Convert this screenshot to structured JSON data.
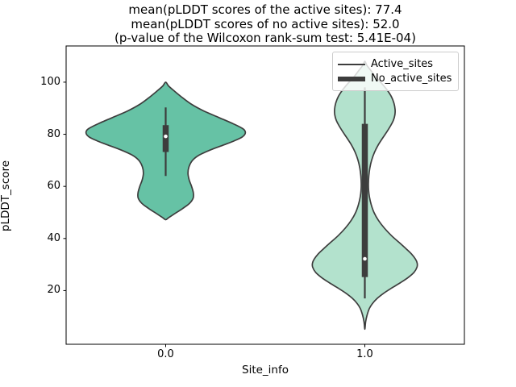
{
  "chart_data": {
    "type": "violin",
    "title_lines": [
      "mean(pLDDT scores of the active sites): 77.4",
      "mean(pLDDT scores of no active sites): 52.0",
      "(p-value of the Wilcoxon rank-sum test: 5.41E-04)"
    ],
    "xlabel": "Site_info",
    "ylabel": "pLDDT_score",
    "xlim": [
      -0.5,
      1.5
    ],
    "ylim": [
      -0.6,
      113.9
    ],
    "grid": false,
    "legend": {
      "position": "upper right",
      "items": [
        {
          "label": "Active_sites",
          "line_weight": "thin"
        },
        {
          "label": "No_active_sites",
          "line_weight": "thick"
        }
      ]
    },
    "x_ticks": [
      {
        "value": 0.0,
        "label": "0.0"
      },
      {
        "value": 1.0,
        "label": "1.0"
      }
    ],
    "y_ticks": [
      {
        "value": 20,
        "label": "20"
      },
      {
        "value": 40,
        "label": "40"
      },
      {
        "value": 60,
        "label": "60"
      },
      {
        "value": 80,
        "label": "80"
      },
      {
        "value": 100,
        "label": "100"
      }
    ],
    "colors": {
      "violin_active_fill": "#66c2a5",
      "violin_no_active_fill": "#b3e2cd",
      "edge": "#3d3d3d",
      "spine": "#000000",
      "median_dot": "#ffffff",
      "legend_border": "#cccccc"
    },
    "stats": {
      "mean_active_sites": 77.4,
      "mean_no_active_sites": 52.0,
      "wilcoxon_p_value": "5.41E-04"
    },
    "violins": [
      {
        "name": "active-sites",
        "category": 0.0,
        "fill": "#66c2a5",
        "box": {
          "whisker_low": 64,
          "q1": 73.2,
          "median": 79.2,
          "q3": 83.5,
          "whisker_high": 90.3
        },
        "profile": [
          [
            100,
            0
          ],
          [
            98.5,
            0.015
          ],
          [
            96.5,
            0.045
          ],
          [
            94,
            0.085
          ],
          [
            91.5,
            0.13
          ],
          [
            89,
            0.19
          ],
          [
            86.5,
            0.265
          ],
          [
            84,
            0.34
          ],
          [
            82,
            0.39
          ],
          [
            80.5,
            0.4
          ],
          [
            79,
            0.385
          ],
          [
            77.5,
            0.345
          ],
          [
            76,
            0.295
          ],
          [
            74,
            0.225
          ],
          [
            72,
            0.168
          ],
          [
            70,
            0.135
          ],
          [
            67.5,
            0.117
          ],
          [
            65,
            0.112
          ],
          [
            62.5,
            0.118
          ],
          [
            60,
            0.13
          ],
          [
            57.5,
            0.139
          ],
          [
            55.5,
            0.138
          ],
          [
            53.5,
            0.12
          ],
          [
            51.5,
            0.085
          ],
          [
            49.5,
            0.045
          ],
          [
            48,
            0.015
          ],
          [
            47.2,
            0
          ]
        ]
      },
      {
        "name": "no-active-sites",
        "category": 1.0,
        "fill": "#b3e2cd",
        "box": {
          "whisker_low": 17,
          "q1": 25.2,
          "median": 32.2,
          "q3": 84,
          "whisker_high": 98
        },
        "profile": [
          [
            108,
            0
          ],
          [
            106.5,
            0.01
          ],
          [
            104.5,
            0.03
          ],
          [
            102,
            0.055
          ],
          [
            99.5,
            0.085
          ],
          [
            97,
            0.112
          ],
          [
            94.5,
            0.133
          ],
          [
            92,
            0.146
          ],
          [
            89.5,
            0.152
          ],
          [
            87.5,
            0.151
          ],
          [
            85.5,
            0.144
          ],
          [
            83.5,
            0.131
          ],
          [
            81,
            0.111
          ],
          [
            78.5,
            0.089
          ],
          [
            76,
            0.068
          ],
          [
            73,
            0.048
          ],
          [
            70,
            0.034
          ],
          [
            67,
            0.025
          ],
          [
            64,
            0.02
          ],
          [
            61,
            0.018
          ],
          [
            58.5,
            0.019
          ],
          [
            56,
            0.023
          ],
          [
            53,
            0.032
          ],
          [
            50,
            0.046
          ],
          [
            47,
            0.068
          ],
          [
            44,
            0.098
          ],
          [
            41,
            0.135
          ],
          [
            38.5,
            0.172
          ],
          [
            36,
            0.208
          ],
          [
            34,
            0.235
          ],
          [
            32,
            0.255
          ],
          [
            30.5,
            0.263
          ],
          [
            29,
            0.262
          ],
          [
            27,
            0.247
          ],
          [
            25,
            0.217
          ],
          [
            23,
            0.178
          ],
          [
            21,
            0.135
          ],
          [
            19,
            0.095
          ],
          [
            17,
            0.062
          ],
          [
            15,
            0.038
          ],
          [
            13,
            0.022
          ],
          [
            10.5,
            0.011
          ],
          [
            8,
            0.004
          ],
          [
            5.2,
            0
          ]
        ]
      }
    ]
  }
}
